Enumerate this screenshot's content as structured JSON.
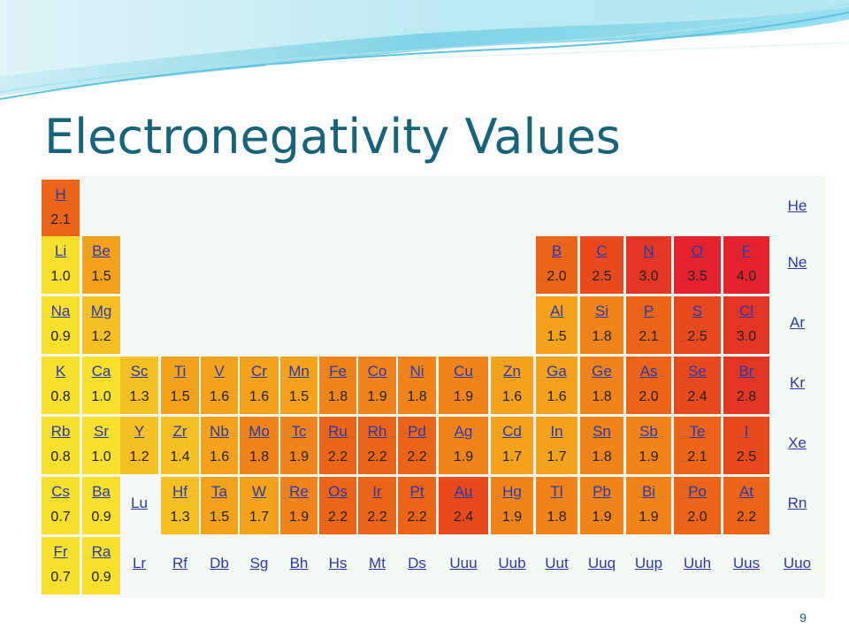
{
  "slide": {
    "title": "Electronegativity Values",
    "number": "9"
  },
  "colors": {
    "title": "#17647a",
    "scale": [
      "#f7e02c",
      "#f6c024",
      "#f4a21c",
      "#f0841a",
      "#ec6418",
      "#e84a1e",
      "#e43624",
      "#e4232e"
    ]
  },
  "table": {
    "rows": [
      [
        {
          "s": "H",
          "v": "2.1"
        },
        null,
        null,
        null,
        null,
        null,
        null,
        null,
        null,
        null,
        null,
        null,
        null,
        null,
        null,
        null,
        null,
        {
          "s": "He"
        }
      ],
      [
        {
          "s": "Li",
          "v": "1.0"
        },
        {
          "s": "Be",
          "v": "1.5"
        },
        null,
        null,
        null,
        null,
        null,
        null,
        null,
        null,
        null,
        null,
        {
          "s": "B",
          "v": "2.0"
        },
        {
          "s": "C",
          "v": "2.5"
        },
        {
          "s": "N",
          "v": "3.0"
        },
        {
          "s": "O",
          "v": "3.5"
        },
        {
          "s": "F",
          "v": "4.0"
        },
        {
          "s": "Ne"
        }
      ],
      [
        {
          "s": "Na",
          "v": "0.9"
        },
        {
          "s": "Mg",
          "v": "1.2"
        },
        null,
        null,
        null,
        null,
        null,
        null,
        null,
        null,
        null,
        null,
        {
          "s": "Al",
          "v": "1.5"
        },
        {
          "s": "Si",
          "v": "1.8"
        },
        {
          "s": "P",
          "v": "2.1"
        },
        {
          "s": "S",
          "v": "2.5"
        },
        {
          "s": "Cl",
          "v": "3.0"
        },
        {
          "s": "Ar"
        }
      ],
      [
        {
          "s": "K",
          "v": "0.8"
        },
        {
          "s": "Ca",
          "v": "1.0"
        },
        {
          "s": "Sc",
          "v": "1.3"
        },
        {
          "s": "Ti",
          "v": "1.5"
        },
        {
          "s": "V",
          "v": "1.6"
        },
        {
          "s": "Cr",
          "v": "1.6"
        },
        {
          "s": "Mn",
          "v": "1.5"
        },
        {
          "s": "Fe",
          "v": "1.8"
        },
        {
          "s": "Co",
          "v": "1.9"
        },
        {
          "s": "Ni",
          "v": "1.8"
        },
        {
          "s": "Cu",
          "v": "1.9"
        },
        {
          "s": "Zn",
          "v": "1.6"
        },
        {
          "s": "Ga",
          "v": "1.6"
        },
        {
          "s": "Ge",
          "v": "1.8"
        },
        {
          "s": "As",
          "v": "2.0"
        },
        {
          "s": "Se",
          "v": "2.4"
        },
        {
          "s": "Br",
          "v": "2.8"
        },
        {
          "s": "Kr"
        }
      ],
      [
        {
          "s": "Rb",
          "v": "0.8"
        },
        {
          "s": "Sr",
          "v": "1.0"
        },
        {
          "s": "Y",
          "v": "1.2"
        },
        {
          "s": "Zr",
          "v": "1.4"
        },
        {
          "s": "Nb",
          "v": "1.6"
        },
        {
          "s": "Mo",
          "v": "1.8"
        },
        {
          "s": "Tc",
          "v": "1.9"
        },
        {
          "s": "Ru",
          "v": "2.2"
        },
        {
          "s": "Rh",
          "v": "2.2"
        },
        {
          "s": "Pd",
          "v": "2.2"
        },
        {
          "s": "Ag",
          "v": "1.9"
        },
        {
          "s": "Cd",
          "v": "1.7"
        },
        {
          "s": "In",
          "v": "1.7"
        },
        {
          "s": "Sn",
          "v": "1.8"
        },
        {
          "s": "Sb",
          "v": "1.9"
        },
        {
          "s": "Te",
          "v": "2.1"
        },
        {
          "s": "I",
          "v": "2.5"
        },
        {
          "s": "Xe"
        }
      ],
      [
        {
          "s": "Cs",
          "v": "0.7"
        },
        {
          "s": "Ba",
          "v": "0.9"
        },
        {
          "s": "Lu"
        },
        {
          "s": "Hf",
          "v": "1.3"
        },
        {
          "s": "Ta",
          "v": "1.5"
        },
        {
          "s": "W",
          "v": "1.7"
        },
        {
          "s": "Re",
          "v": "1.9"
        },
        {
          "s": "Os",
          "v": "2.2"
        },
        {
          "s": "Ir",
          "v": "2.2"
        },
        {
          "s": "Pt",
          "v": "2.2"
        },
        {
          "s": "Au",
          "v": "2.4"
        },
        {
          "s": "Hg",
          "v": "1.9"
        },
        {
          "s": "Tl",
          "v": "1.8"
        },
        {
          "s": "Pb",
          "v": "1.9"
        },
        {
          "s": "Bi",
          "v": "1.9"
        },
        {
          "s": "Po",
          "v": "2.0"
        },
        {
          "s": "At",
          "v": "2.2"
        },
        {
          "s": "Rn"
        }
      ],
      [
        {
          "s": "Fr",
          "v": "0.7"
        },
        {
          "s": "Ra",
          "v": "0.9"
        },
        {
          "s": "Lr"
        },
        {
          "s": "Rf"
        },
        {
          "s": "Db"
        },
        {
          "s": "Sg"
        },
        {
          "s": "Bh"
        },
        {
          "s": "Hs"
        },
        {
          "s": "Mt"
        },
        {
          "s": "Ds"
        },
        {
          "s": "Uuu"
        },
        {
          "s": "Uub"
        },
        {
          "s": "Uut"
        },
        {
          "s": "Uuq"
        },
        {
          "s": "Uup"
        },
        {
          "s": "Uuh"
        },
        {
          "s": "Uus"
        },
        {
          "s": "Uuo"
        }
      ]
    ]
  }
}
